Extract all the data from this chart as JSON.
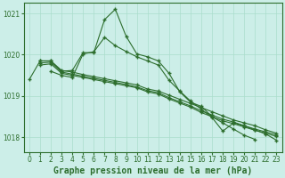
{
  "background_color": "#cceee8",
  "grid_color": "#aaddcc",
  "line_color": "#2d6e2d",
  "title": "Graphe pression niveau de la mer (hPa)",
  "xlim": [
    -0.5,
    23.5
  ],
  "ylim": [
    1017.65,
    1021.25
  ],
  "yticks": [
    1018,
    1019,
    1020,
    1021
  ],
  "xticks": [
    0,
    1,
    2,
    3,
    4,
    5,
    6,
    7,
    8,
    9,
    10,
    11,
    12,
    13,
    14,
    15,
    16,
    17,
    18,
    19,
    20,
    21,
    22,
    23
  ],
  "s0_x": [
    0,
    1,
    2,
    3,
    4,
    5,
    6,
    7,
    8,
    9,
    10,
    11,
    12,
    13,
    14,
    15,
    16,
    17,
    18,
    19,
    20,
    21
  ],
  "s0_y": [
    1019.4,
    1019.85,
    1019.85,
    1019.6,
    1019.62,
    1020.05,
    1020.05,
    1020.85,
    1021.1,
    1020.45,
    1020.02,
    1019.95,
    1019.85,
    1019.55,
    1019.1,
    1018.85,
    1018.75,
    1018.5,
    1018.35,
    1018.2,
    1018.05,
    1017.95
  ],
  "s1_x": [
    1,
    2,
    3,
    4,
    5,
    6,
    7,
    8,
    9,
    10,
    11,
    12,
    13,
    14,
    15,
    16,
    17,
    18,
    19,
    20,
    21,
    22,
    23
  ],
  "s1_y": [
    1019.85,
    1019.85,
    1019.62,
    1019.58,
    1019.52,
    1019.47,
    1019.42,
    1019.37,
    1019.32,
    1019.27,
    1019.17,
    1019.12,
    1019.02,
    1018.92,
    1018.82,
    1018.72,
    1018.62,
    1018.52,
    1018.42,
    1018.35,
    1018.28,
    1018.18,
    1018.1
  ],
  "s2_x": [
    1,
    2,
    3,
    4,
    5,
    6,
    7,
    8,
    9,
    10,
    11,
    12,
    13,
    14,
    15,
    16,
    17,
    18,
    19,
    20,
    21,
    22,
    23
  ],
  "s2_y": [
    1019.8,
    1019.82,
    1019.58,
    1019.53,
    1019.48,
    1019.43,
    1019.38,
    1019.33,
    1019.28,
    1019.22,
    1019.13,
    1019.08,
    1018.96,
    1018.86,
    1018.76,
    1018.64,
    1018.54,
    1018.44,
    1018.37,
    1018.28,
    1018.2,
    1018.13,
    1018.06
  ],
  "s3_x": [
    1,
    2,
    3,
    4,
    5,
    6,
    7,
    8,
    9,
    10,
    11,
    12,
    13,
    14,
    15,
    16,
    17,
    18,
    19,
    20,
    21,
    22,
    23
  ],
  "s3_y": [
    1019.75,
    1019.78,
    1019.55,
    1019.5,
    1019.45,
    1019.4,
    1019.35,
    1019.3,
    1019.25,
    1019.2,
    1019.1,
    1019.05,
    1018.93,
    1018.83,
    1018.73,
    1018.6,
    1018.5,
    1018.4,
    1018.33,
    1018.25,
    1018.17,
    1018.1,
    1018.02
  ],
  "s4_x": [
    2,
    3,
    4,
    5,
    6,
    7,
    8,
    9,
    10,
    11,
    12,
    13,
    14,
    15,
    16,
    17,
    18,
    19,
    20,
    21,
    22,
    23
  ],
  "s4_y": [
    1019.6,
    1019.5,
    1019.45,
    1020.02,
    1020.07,
    1020.42,
    1020.22,
    1020.08,
    1019.95,
    1019.85,
    1019.75,
    1019.38,
    1019.12,
    1018.88,
    1018.68,
    1018.48,
    1018.15,
    1018.35,
    1018.28,
    1018.18,
    1018.08,
    1017.93
  ],
  "marker": "+",
  "markersize": 3,
  "linewidth": 0.8,
  "title_fontsize": 7,
  "tick_fontsize": 5.5
}
